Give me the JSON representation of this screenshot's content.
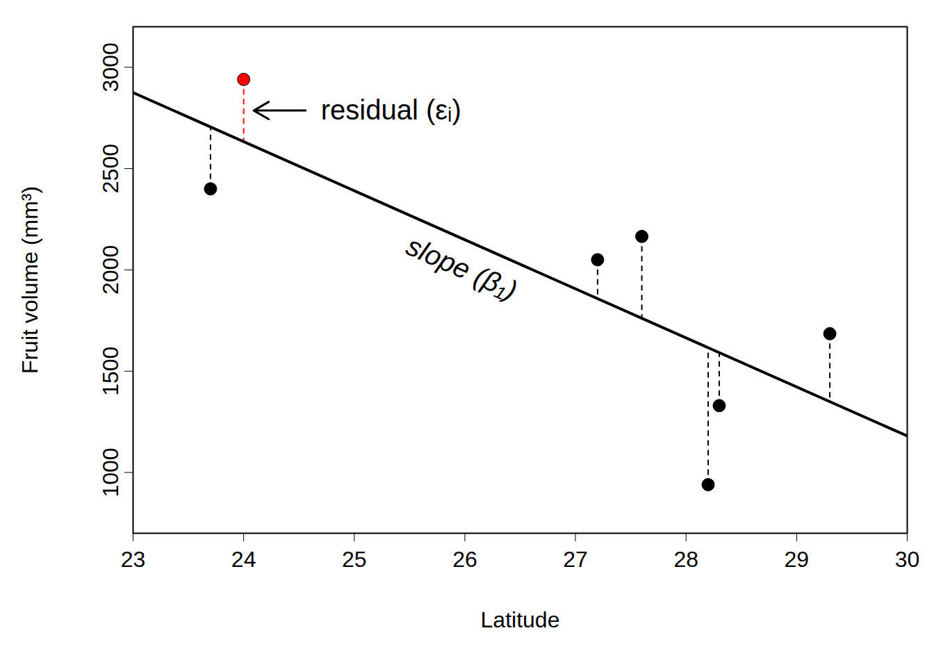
{
  "chart_data": {
    "type": "scatter",
    "x_label": "Latitude",
    "y_label": "Fruit volume (mm³)",
    "x": [
      23.7,
      24.0,
      27.2,
      27.6,
      28.2,
      28.3,
      29.3
    ],
    "values": [
      2400,
      2940,
      2050,
      2165,
      940,
      1330,
      1685
    ],
    "colors": [
      "black",
      "red",
      "black",
      "black",
      "black",
      "black",
      "black"
    ],
    "marker": "circle",
    "fit": {
      "x": [
        23,
        30
      ],
      "values": [
        2875,
        1180
      ],
      "color": "black",
      "line_style": "solid"
    },
    "residuals": {
      "values": [
        2705,
        2633,
        1858,
        1761,
        1616,
        1592,
        1350
      ],
      "line_style": "dashed"
    },
    "annotations": [
      {
        "text": "residual (εᵢ)"
      },
      {
        "text": "slope (β₁)"
      }
    ],
    "xlim": [
      23,
      30
    ],
    "ylim": [
      700,
      3200
    ],
    "xticks": [
      23,
      24,
      25,
      26,
      27,
      28,
      29,
      30
    ],
    "yticks": [
      1000,
      1500,
      2000,
      2500,
      3000
    ],
    "grid": false
  }
}
